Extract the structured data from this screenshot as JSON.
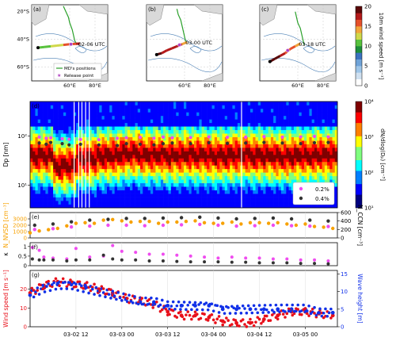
{
  "chart_data": [
    {
      "type": "map",
      "panel_label": "(a)",
      "annotation": "02-06 UTC",
      "lat_ticks": [
        "20°S",
        "40°S",
        "60°S"
      ],
      "lon_ticks": [
        "60°E",
        "80°E"
      ],
      "legend": [
        "MD's positions",
        "Release point"
      ],
      "track_lon": [
        35,
        40,
        45,
        50,
        55,
        60,
        65,
        68
      ],
      "track_lat": [
        -46,
        -45.5,
        -45,
        -44.5,
        -44,
        -43.5,
        -43.2,
        -43
      ],
      "track_speed": [
        11,
        11,
        13,
        13,
        16,
        16,
        18,
        19
      ],
      "ship_track_lon": [
        66,
        64,
        63,
        62,
        60,
        59,
        57,
        55
      ],
      "ship_track_lat": [
        -44,
        -41,
        -37,
        -33,
        -28,
        -24,
        -20,
        -16
      ],
      "release_point": [
        61,
        -43.5
      ]
    },
    {
      "type": "map",
      "panel_label": "(b)",
      "annotation": "03-00 UTC",
      "lat_ticks": [
        "20°S",
        "40°S",
        "60°S"
      ],
      "lon_ticks": [
        "60°E",
        "80°E"
      ],
      "track_lon": [
        38,
        42,
        46,
        50,
        54,
        58,
        62
      ],
      "track_lat": [
        -51,
        -50,
        -48,
        -46.5,
        -45,
        -43.5,
        -42
      ],
      "track_speed": [
        19,
        18,
        18,
        17,
        17,
        14,
        12
      ],
      "ship_track_lon": [
        61,
        60,
        59,
        58,
        57,
        55,
        54
      ],
      "ship_track_lat": [
        -42,
        -38,
        -34,
        -30,
        -26,
        -22,
        -18
      ],
      "release_point": [
        56,
        -44
      ]
    },
    {
      "type": "map",
      "panel_label": "(c)",
      "annotation": "03-18 UTC",
      "lat_ticks": [
        "20°S",
        "40°S",
        "60°S"
      ],
      "lon_ticks": [
        "60°E",
        "80°E"
      ],
      "track_lon": [
        38,
        42,
        46,
        50,
        54,
        58,
        62
      ],
      "track_lat": [
        -56,
        -54,
        -52,
        -50,
        -47,
        -45,
        -43
      ],
      "track_speed": [
        19,
        19,
        17,
        16,
        15,
        14,
        14
      ],
      "ship_track_lon": [
        65,
        64,
        63,
        62,
        60,
        59,
        58
      ],
      "ship_track_lat": [
        -44,
        -40,
        -36,
        -32,
        -28,
        -24,
        -20
      ],
      "release_point": [
        52,
        -48
      ]
    },
    {
      "type": "colorbar",
      "label": "10m wind speed [m s⁻¹]",
      "ticks": [
        0,
        5,
        10,
        15,
        20
      ],
      "range": [
        0,
        20
      ],
      "colors": [
        "#ffffff",
        "#cfe0f0",
        "#9ec5e8",
        "#6fa3d8",
        "#3b72c0",
        "#1d8e3b",
        "#58c23d",
        "#d0d84a",
        "#f2a43a",
        "#e5502a",
        "#b41a1a",
        "#5a0808"
      ]
    },
    {
      "type": "heatmap",
      "panel_label": "(d)",
      "ylabel": "Dp [nm]",
      "yscale": "log",
      "ylim": [
        3.5,
        500
      ],
      "yticks": [
        "10¹",
        "10²"
      ],
      "colorbar_label": "dN/dlog(Dₚ) [cm⁻³]",
      "colorbar_ticks": [
        "10¹",
        "10²",
        "10³",
        "10⁴"
      ],
      "mode_diameter_nm": [
        40,
        25,
        35,
        40,
        45,
        42,
        40,
        42,
        40,
        42,
        40,
        38,
        40,
        42
      ],
      "series": [
        {
          "name": "0.2%",
          "color": "#ef4cef",
          "x": [
            0.2,
            0.35,
            0.45,
            0.7,
            0.85,
            1.1,
            1.5,
            1.9,
            2.1,
            2.4,
            2.7,
            2.9,
            3.1,
            3.5,
            3.9,
            4.3,
            4.7,
            5.1,
            5.5,
            5.9,
            6.2,
            6.5
          ],
          "y": [
            95,
            90,
            92,
            88,
            86,
            85,
            84,
            90,
            92,
            94,
            90,
            95,
            92,
            93,
            96,
            94,
            95,
            97,
            95,
            96,
            98,
            96
          ]
        },
        {
          "name": "0.4%",
          "color": "#333333",
          "x": [
            0.2,
            0.35,
            0.45,
            0.7,
            0.85,
            1.1,
            1.5,
            1.9,
            2.1,
            2.4,
            2.7,
            2.9,
            3.1,
            3.5,
            3.9,
            4.3,
            4.7,
            5.1,
            5.5,
            5.9,
            6.2,
            6.5
          ],
          "y": [
            72,
            68,
            74,
            70,
            66,
            68,
            66,
            64,
            70,
            68,
            66,
            70,
            72,
            70,
            73,
            71,
            72,
            74,
            72,
            70,
            73,
            74
          ]
        }
      ]
    },
    {
      "type": "scatter",
      "panel_label": "(e)",
      "ylabel_left": "N_NVSD [cm⁻³]",
      "ylabel_right": "N_CCN [cm⁻³]",
      "ylim_left": [
        0,
        4000
      ],
      "yticks_left": [
        0,
        1000,
        2000,
        3000
      ],
      "ylim_right": [
        0,
        600
      ],
      "yticks_right": [
        0,
        200,
        400,
        600
      ],
      "series": [
        {
          "name": "N_NVSD",
          "color": "#f7a100",
          "x": [
            0.0,
            0.2,
            0.4,
            0.6,
            0.8,
            1.0,
            1.2,
            1.4,
            1.6,
            1.8,
            2.0,
            2.2,
            2.4,
            2.6,
            2.8,
            3.0,
            3.2,
            3.4,
            3.6,
            3.8,
            4.0,
            4.2,
            4.4,
            4.6,
            4.8,
            5.0,
            5.2,
            5.4,
            5.6,
            5.8,
            6.0,
            6.2,
            6.4,
            6.6
          ],
          "y": [
            800,
            1100,
            1300,
            1500,
            1900,
            2300,
            2400,
            2300,
            2800,
            2900,
            2700,
            2500,
            2600,
            2600,
            2300,
            2500,
            2500,
            2600,
            2700,
            2400,
            2300,
            2300,
            2500,
            2200,
            2400,
            2400,
            2300,
            2400,
            2200,
            2000,
            2200,
            1800,
            1700,
            1500
          ]
        },
        {
          "name": "0.2%",
          "color": "#ef4cef",
          "x": [
            0.1,
            0.5,
            0.9,
            1.3,
            1.7,
            2.1,
            2.5,
            2.9,
            3.3,
            3.7,
            4.1,
            4.5,
            4.9,
            5.3,
            5.7,
            6.1,
            6.5
          ],
          "y": [
            200,
            220,
            260,
            280,
            300,
            300,
            290,
            300,
            310,
            320,
            300,
            280,
            290,
            300,
            290,
            280,
            270
          ]
        },
        {
          "name": "0.4%",
          "color": "#333333",
          "x": [
            0.1,
            0.5,
            0.9,
            1.3,
            1.7,
            2.1,
            2.5,
            2.9,
            3.3,
            3.7,
            4.1,
            4.5,
            4.9,
            5.3,
            5.7,
            6.1,
            6.5
          ],
          "y": [
            300,
            330,
            380,
            420,
            440,
            460,
            460,
            470,
            480,
            490,
            470,
            450,
            460,
            470,
            450,
            420,
            400
          ]
        }
      ]
    },
    {
      "type": "scatter",
      "panel_label": "(f)",
      "ylabel": "κ",
      "ylim": [
        0,
        1.2
      ],
      "yticks": [
        0,
        0.5,
        1
      ],
      "series": [
        {
          "name": "0.2%",
          "color": "#ef4cef",
          "x": [
            0.05,
            0.2,
            0.3,
            0.5,
            0.8,
            1.0,
            1.3,
            1.6,
            1.8,
            2.0,
            2.3,
            2.6,
            2.9,
            3.2,
            3.5,
            3.8,
            4.1,
            4.4,
            4.7,
            5.0,
            5.3,
            5.6,
            5.9,
            6.2,
            6.5
          ],
          "y": [
            0.95,
            0.8,
            0.45,
            0.4,
            0.35,
            0.9,
            0.45,
            0.5,
            1.05,
            0.75,
            0.7,
            0.6,
            0.6,
            0.55,
            0.5,
            0.45,
            0.4,
            0.45,
            0.4,
            0.4,
            0.35,
            0.35,
            0.3,
            0.3,
            0.25
          ]
        },
        {
          "name": "0.4%",
          "color": "#333333",
          "x": [
            0.05,
            0.2,
            0.3,
            0.5,
            0.8,
            1.0,
            1.3,
            1.6,
            1.8,
            2.0,
            2.3,
            2.6,
            2.9,
            3.2,
            3.5,
            3.8,
            4.1,
            4.4,
            4.7,
            5.0,
            5.3,
            5.6,
            5.9,
            6.2,
            6.5
          ],
          "y": [
            0.35,
            0.3,
            0.3,
            0.3,
            0.25,
            0.3,
            0.3,
            0.55,
            0.35,
            0.3,
            0.3,
            0.25,
            0.25,
            0.22,
            0.2,
            0.2,
            0.2,
            0.18,
            0.18,
            0.15,
            0.15,
            0.15,
            0.12,
            0.12,
            0.1
          ]
        }
      ]
    },
    {
      "type": "scatter",
      "panel_label": "(g)",
      "ylabel_left": "Wind speed [m s⁻¹]",
      "ylabel_right": "Wave height [m]",
      "ylim_left": [
        0,
        30
      ],
      "yticks_left": [
        0,
        10,
        20
      ],
      "ylim_right": [
        0,
        16
      ],
      "yticks_right": [
        0,
        5,
        10,
        15
      ],
      "xticks": [
        "03-02 12",
        "03-03 00",
        "03-03 12",
        "03-04 00",
        "03-04 12",
        "03-05 00"
      ],
      "xtick_pos": [
        1.0,
        2.0,
        3.0,
        4.0,
        5.0,
        6.0
      ],
      "xlim": [
        0,
        6.7
      ],
      "series": [
        {
          "name": "Wind speed",
          "color": "#e8101a",
          "x": [
            0.0,
            0.3,
            0.6,
            0.9,
            1.2,
            1.5,
            1.8,
            2.1,
            2.4,
            2.7,
            3.0,
            3.3,
            3.6,
            3.9,
            4.2,
            4.5,
            4.8,
            5.1,
            5.4,
            5.7,
            6.0,
            6.3,
            6.6
          ],
          "y": [
            18,
            22,
            24,
            23,
            22,
            20,
            18,
            15,
            14,
            12,
            8,
            6,
            6,
            5,
            3,
            2,
            2,
            4,
            6,
            8,
            8,
            7,
            6
          ]
        },
        {
          "name": "Wave height",
          "color": "#1030e8",
          "x": [
            0.0,
            0.3,
            0.6,
            0.9,
            1.2,
            1.5,
            1.8,
            2.1,
            2.4,
            2.7,
            3.0,
            3.3,
            3.6,
            3.9,
            4.2,
            4.5,
            4.8,
            5.1,
            5.4,
            5.7,
            6.0,
            6.3,
            6.6
          ],
          "y": [
            9,
            11,
            12,
            12,
            11,
            10,
            9,
            8,
            7,
            7,
            6,
            6,
            6,
            6,
            5,
            5,
            5,
            5,
            5,
            5,
            5,
            4,
            4
          ]
        }
      ]
    }
  ]
}
